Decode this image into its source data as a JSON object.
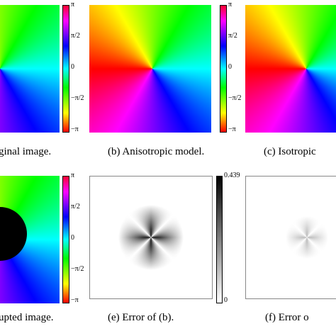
{
  "panels": [
    {
      "caption": "ginal image.",
      "colorbar": [
        "π",
        "π/2",
        "0",
        "−π/2",
        "−π"
      ]
    },
    {
      "caption": "(b) Anisotropic model.",
      "colorbar": [
        "π",
        "π/2",
        "0",
        "−π/2",
        "−π"
      ]
    },
    {
      "caption": "(c) Isotropic"
    },
    {
      "caption": "upted image.",
      "colorbar": [
        "π",
        "π/2",
        "0",
        "−π/2",
        "−π"
      ]
    },
    {
      "caption": "(e) Error of (b).",
      "colorbar": [
        "0.439",
        "0"
      ]
    },
    {
      "caption": "(f) Error o"
    }
  ]
}
